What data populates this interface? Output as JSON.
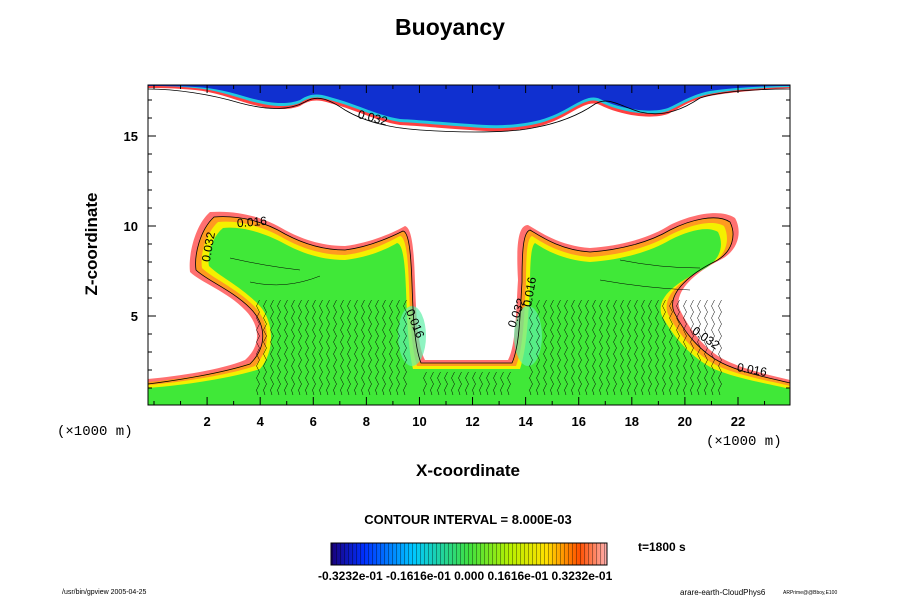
{
  "chart_data": {
    "type": "contour",
    "title": "Buoyancy",
    "xlabel": "X-coordinate",
    "ylabel": "Z-coordinate",
    "x_unit_label": "(×1000 m)",
    "xlim": [
      0,
      24
    ],
    "ylim": [
      0,
      17.5
    ],
    "x_ticks": [
      2,
      4,
      6,
      8,
      10,
      12,
      14,
      16,
      18,
      20,
      22
    ],
    "y_ticks": [
      5,
      10,
      15
    ],
    "contour_interval_text": "CONTOUR INTERVAL = 8.000E-03",
    "time_text": "t=1800 s",
    "colorbar_text": "-0.3232e-01 -0.1616e-01 0.000 0.1616e-01 0.3232e-01",
    "colorbar_range": [
      -0.03232,
      0.03232
    ],
    "contour_labels": [
      {
        "text": "0.016",
        "x": 3.7,
        "z": 10.0,
        "angle": -5
      },
      {
        "text": "0.032",
        "x": 2.2,
        "z": 8.8,
        "angle": -80
      },
      {
        "text": "0.016",
        "x": 9.7,
        "z": 4.5,
        "angle": 68
      },
      {
        "text": "0.032",
        "x": 13.8,
        "z": 5.1,
        "angle": -70
      },
      {
        "text": "0.016",
        "x": 14.3,
        "z": 6.3,
        "angle": -80
      },
      {
        "text": "0.032",
        "x": 20.7,
        "z": 3.6,
        "angle": 35
      },
      {
        "text": "0.016",
        "x": 22.5,
        "z": 1.8,
        "angle": 10
      },
      {
        "text": "0.032",
        "x": 8.2,
        "z": 15.8,
        "angle": 15
      }
    ],
    "footer_left": "/usr/bin/gpview 2005-04-25",
    "footer_right": "arare-earth-CloudPhys6",
    "footer_right_small": "ARPrime@@Bboy,E100"
  }
}
